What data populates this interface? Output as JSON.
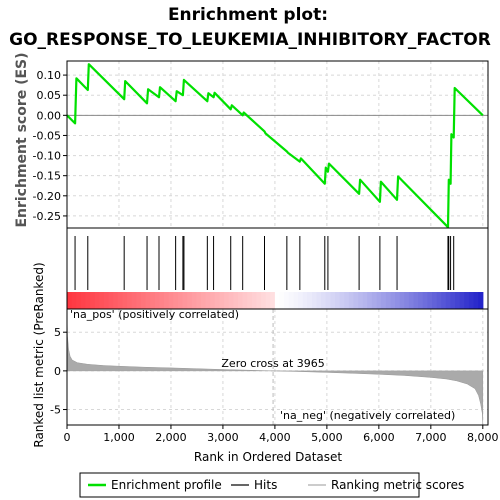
{
  "title_line1": "Enrichment plot:",
  "title_line2": "GO_RESPONSE_TO_LEUKEMIA_INHIBITORY_FACTOR",
  "colors": {
    "enrichment_line": "#00e000",
    "hit_line": "#000000",
    "grid": "#d8d8d8",
    "metric_fill": "#aaaaaa",
    "pos_label": "#e00000",
    "neg_label": "#2020c0",
    "zero_cross_line": "#bbbbbb"
  },
  "chart_data": [
    {
      "type": "line",
      "name": "enrichment-profile",
      "ylabel": "Enrichment score (ES)",
      "xlim": [
        0,
        8100
      ],
      "ylim": [
        -0.28,
        0.135
      ],
      "grid": true,
      "yticks": [
        0.1,
        0.05,
        0.0,
        -0.05,
        -0.1,
        -0.15,
        -0.2,
        -0.25
      ],
      "ytick_labels": [
        "0.10",
        "0.05",
        "0.00",
        "-0.05",
        "-0.10",
        "-0.15",
        "-0.20",
        "-0.25"
      ],
      "x": [
        0,
        155,
        180,
        400,
        420,
        1100,
        1120,
        1540,
        1560,
        1770,
        1790,
        2090,
        2110,
        2230,
        2250,
        2700,
        2720,
        2820,
        2840,
        3150,
        3170,
        3380,
        3400,
        3800,
        3820,
        4230,
        4250,
        4480,
        4500,
        4960,
        4980,
        5020,
        5040,
        5620,
        5640,
        6020,
        6040,
        6350,
        6370,
        7330,
        7345,
        7380,
        7395,
        7440,
        7460,
        8000
      ],
      "y": [
        0.0,
        -0.02,
        0.092,
        0.063,
        0.127,
        0.04,
        0.085,
        0.03,
        0.065,
        0.045,
        0.07,
        0.035,
        0.06,
        0.05,
        0.088,
        0.035,
        0.055,
        0.045,
        0.056,
        0.015,
        0.025,
        0.0,
        0.007,
        -0.04,
        -0.045,
        -0.09,
        -0.093,
        -0.115,
        -0.107,
        -0.17,
        -0.13,
        -0.14,
        -0.12,
        -0.195,
        -0.16,
        -0.215,
        -0.165,
        -0.21,
        -0.152,
        -0.278,
        -0.16,
        -0.17,
        -0.047,
        -0.055,
        0.068,
        0.0
      ]
    },
    {
      "type": "hits",
      "name": "hits",
      "xlim": [
        0,
        8100
      ],
      "x": [
        155,
        400,
        1100,
        1540,
        1770,
        2090,
        2230,
        2250,
        2700,
        2820,
        3150,
        3380,
        3800,
        4230,
        4480,
        4960,
        5020,
        5620,
        6020,
        6350,
        7330,
        7345,
        7380,
        7440
      ]
    },
    {
      "type": "area",
      "name": "ranked-list-metric",
      "xlabel": "Rank in Ordered Dataset",
      "ylabel": "Ranked list metric (PreRanked)",
      "xlim": [
        0,
        8100
      ],
      "ylim": [
        -7,
        8
      ],
      "yticks": [
        5,
        0,
        -5
      ],
      "ytick_labels": [
        "5",
        "0",
        "-5"
      ],
      "xticks": [
        0,
        1000,
        2000,
        3000,
        4000,
        5000,
        6000,
        7000,
        8000
      ],
      "xtick_labels": [
        "0",
        "1,000",
        "2,000",
        "3,000",
        "4,000",
        "5,000",
        "6,000",
        "7,000",
        "8,000"
      ],
      "x": [
        0,
        10,
        30,
        60,
        100,
        200,
        400,
        700,
        1000,
        1500,
        2000,
        2500,
        3000,
        3500,
        3965,
        4500,
        5000,
        5500,
        6000,
        6500,
        7000,
        7300,
        7500,
        7700,
        7850,
        7920,
        7960,
        7990,
        8000
      ],
      "y": [
        7.5,
        4.5,
        2.8,
        1.9,
        1.4,
        1.05,
        0.85,
        0.7,
        0.6,
        0.48,
        0.38,
        0.28,
        0.18,
        0.08,
        0.0,
        -0.1,
        -0.2,
        -0.32,
        -0.45,
        -0.6,
        -0.85,
        -1.05,
        -1.3,
        -1.7,
        -2.3,
        -3.2,
        -4.3,
        -5.5,
        -7
      ],
      "zero_cross_rank": 3965,
      "annotations": {
        "zero_cross": "Zero cross at 3965",
        "pos_label": "'na_pos' (positively correlated)",
        "neg_label": "'na_neg' (negatively correlated)"
      }
    }
  ],
  "legend": {
    "items": [
      {
        "label": "Enrichment profile",
        "kind": "line",
        "color": "#00e000"
      },
      {
        "label": "Hits",
        "kind": "line",
        "color": "#666666"
      },
      {
        "label": "Ranking metric scores",
        "kind": "line",
        "color": "#cccccc"
      }
    ]
  }
}
